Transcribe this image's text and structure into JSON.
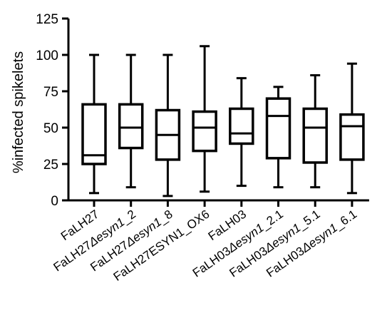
{
  "chart_data": {
    "type": "box",
    "ylabel": "%infected spikelets",
    "xlabel": "",
    "ylim": [
      0,
      125
    ],
    "yticks": [
      0,
      25,
      50,
      75,
      100,
      125
    ],
    "grid": false,
    "categories": [
      [
        {
          "t": "FaLH27"
        }
      ],
      [
        {
          "t": "FaLH27"
        },
        {
          "t": "Δesyn1",
          "i": true
        },
        {
          "t": "_2"
        }
      ],
      [
        {
          "t": "FaLH27"
        },
        {
          "t": "Δesyn1",
          "i": true
        },
        {
          "t": "_8"
        }
      ],
      [
        {
          "t": "FaLH27ESYN1_OX6"
        }
      ],
      [
        {
          "t": "FaLH03"
        }
      ],
      [
        {
          "t": "FaLH03"
        },
        {
          "t": "Δesyn1",
          "i": true
        },
        {
          "t": "_2.1"
        }
      ],
      [
        {
          "t": "FaLH03"
        },
        {
          "t": "Δesyn1",
          "i": true
        },
        {
          "t": "_5.1"
        }
      ],
      [
        {
          "t": "FaLH03"
        },
        {
          "t": "Δesyn1",
          "i": true
        },
        {
          "t": "_6.1"
        }
      ]
    ],
    "boxes": [
      {
        "min": 5,
        "q1": 25,
        "median": 31,
        "q3": 66,
        "max": 100
      },
      {
        "min": 9,
        "q1": 36,
        "median": 50,
        "q3": 66,
        "max": 100
      },
      {
        "min": 3,
        "q1": 28,
        "median": 45,
        "q3": 62,
        "max": 100
      },
      {
        "min": 6,
        "q1": 34,
        "median": 50,
        "q3": 61,
        "max": 106
      },
      {
        "min": 10,
        "q1": 39,
        "median": 46,
        "q3": 63,
        "max": 84
      },
      {
        "min": 9,
        "q1": 29,
        "median": 58,
        "q3": 70,
        "max": 78
      },
      {
        "min": 9,
        "q1": 26,
        "median": 50,
        "q3": 63,
        "max": 86
      },
      {
        "min": 5,
        "q1": 28,
        "median": 51,
        "q3": 59,
        "max": 94
      }
    ],
    "colors": {
      "stroke": "#000000",
      "fill": "#ffffff"
    }
  }
}
